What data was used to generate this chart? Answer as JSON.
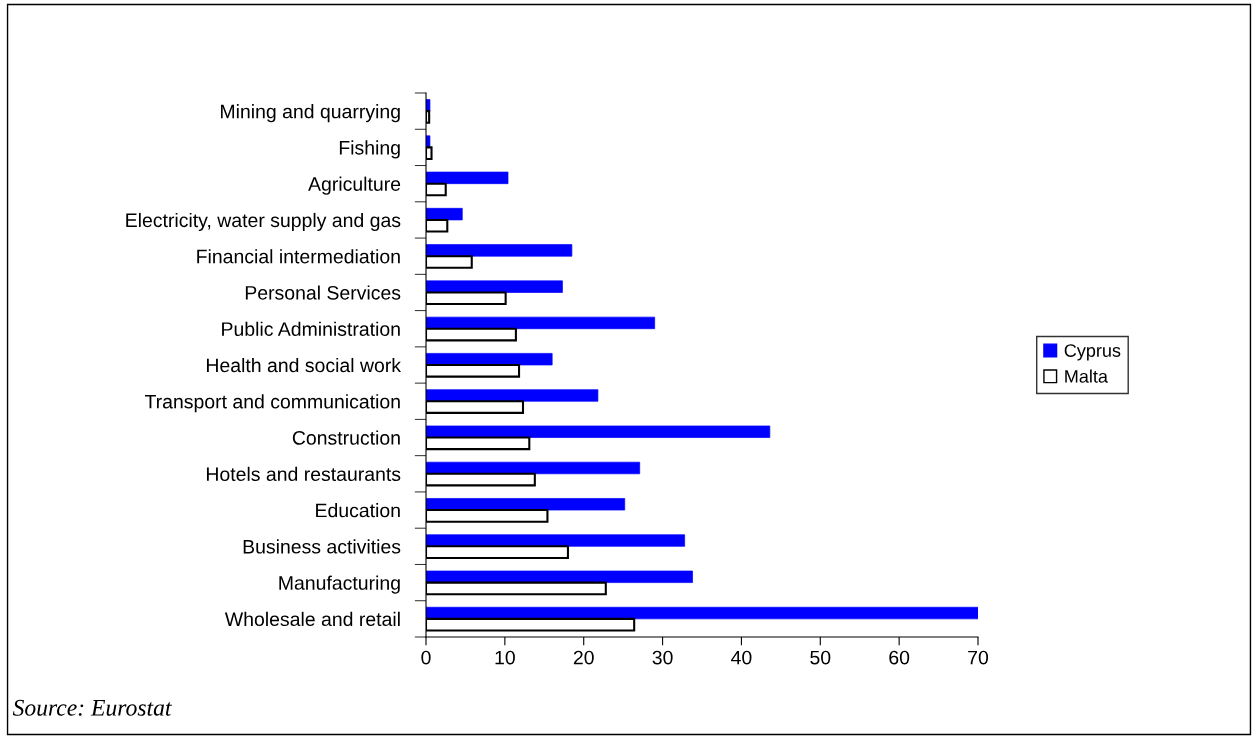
{
  "chart_data": {
    "type": "bar",
    "orientation": "horizontal",
    "categories": [
      "Mining and quarrying",
      "Fishing",
      "Agriculture",
      "Electricity, water supply and gas",
      "Financial intermediation",
      "Personal Services",
      "Public Administration",
      "Health and social work",
      "Transport and communication",
      "Construction",
      "Hotels and restaurants",
      "Education",
      "Business activities",
      "Manufacturing",
      "Wholesale and retail"
    ],
    "series": [
      {
        "name": "Cyprus",
        "color": "#0000ff",
        "values": [
          0.5,
          0.5,
          10.4,
          4.6,
          18.5,
          17.3,
          29.0,
          16.0,
          21.8,
          43.6,
          27.1,
          25.2,
          32.8,
          33.8,
          70
        ]
      },
      {
        "name": "Malta",
        "color": "#ffffff",
        "values": [
          0.4,
          0.7,
          2.5,
          2.7,
          5.8,
          10.1,
          11.4,
          11.8,
          12.3,
          13.1,
          13.8,
          15.4,
          18.0,
          22.8,
          26.4
        ]
      }
    ],
    "xlim": [
      0,
      70
    ],
    "xticks": [
      0,
      10,
      20,
      30,
      40,
      50,
      60,
      70
    ],
    "grid": false,
    "legend": "right",
    "annotations": [
      "Source: Eurostat"
    ]
  }
}
